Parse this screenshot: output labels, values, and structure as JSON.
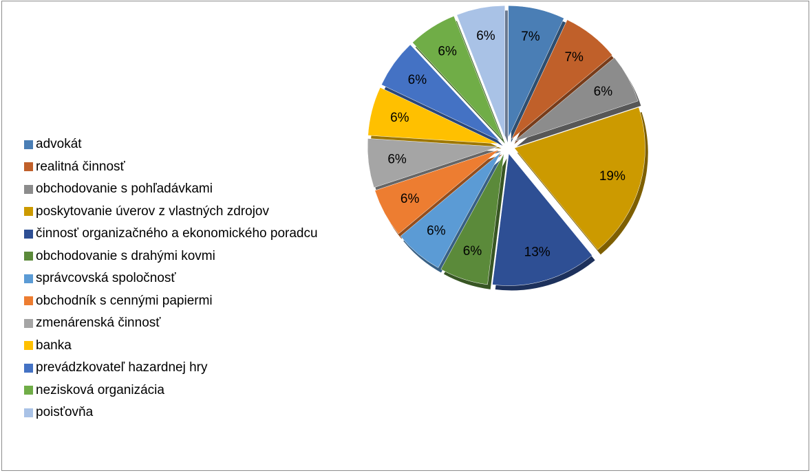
{
  "chart_data": {
    "type": "pie",
    "style": "3d-exploded",
    "legend_position": "left",
    "categories": [
      "advokát",
      "realitná činnosť",
      "obchodovanie s pohľadávkami",
      "poskytovanie úverov z vlastných zdrojov",
      "činnosť organizačného a ekonomického poradcu",
      "obchodovanie s drahými kovmi",
      "správcovská spoločnosť",
      "obchodník s cennými papiermi",
      "zmenárenská činnosť",
      "banka",
      "prevádzkovateľ hazardnej hry",
      "nezisková organizácia",
      "poisťovňa"
    ],
    "values": [
      7,
      7,
      6,
      19,
      13,
      6,
      6,
      6,
      6,
      6,
      6,
      6,
      6
    ],
    "data_labels": [
      "7%",
      "7%",
      "6%",
      "19%",
      "13%",
      "6%",
      "6%",
      "6%",
      "6%",
      "6%",
      "6%",
      "6%",
      "6%"
    ],
    "colors": [
      "#4a7eb5",
      "#c0602a",
      "#8c8c8c",
      "#cc9a00",
      "#2e4f94",
      "#5b8a3a",
      "#5b9bd5",
      "#ed7d31",
      "#a5a5a5",
      "#ffc000",
      "#4472c4",
      "#70ad47",
      "#a9c2e6"
    ]
  }
}
